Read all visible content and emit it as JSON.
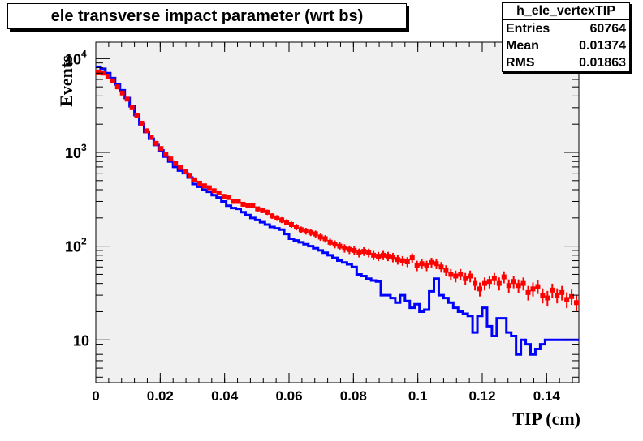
{
  "title": "ele transverse impact parameter (wrt bs)",
  "stats": {
    "name": "h_ele_vertexTIP",
    "rows": [
      {
        "label": "Entries",
        "value": "60764"
      },
      {
        "label": "Mean",
        "value": "0.01374"
      },
      {
        "label": "RMS",
        "value": "0.01863"
      }
    ]
  },
  "colors": {
    "frame_bg": "#f0f0f0",
    "reference": "#0000ff",
    "new": "#ff0000"
  },
  "chart_data": {
    "type": "line",
    "xlabel": "TIP (cm)",
    "ylabel": "Events",
    "xlim": [
      0,
      0.15
    ],
    "ylim": [
      3.5,
      15000
    ],
    "y_scale": "log",
    "grid": false,
    "x_ticks": [
      {
        "v": 0,
        "label": "0"
      },
      {
        "v": 0.02,
        "label": "0.02"
      },
      {
        "v": 0.04,
        "label": "0.04"
      },
      {
        "v": 0.06,
        "label": "0.06"
      },
      {
        "v": 0.08,
        "label": "0.08"
      },
      {
        "v": 0.1,
        "label": "0.1"
      },
      {
        "v": 0.12,
        "label": "0.12"
      },
      {
        "v": 0.14,
        "label": "0.14"
      }
    ],
    "y_ticks": [
      {
        "v": 10,
        "base": "10",
        "exp": ""
      },
      {
        "v": 100,
        "base": "10",
        "exp": "2"
      },
      {
        "v": 1000,
        "base": "10",
        "exp": "3"
      },
      {
        "v": 10000,
        "base": "10",
        "exp": "4"
      }
    ],
    "series": [
      {
        "style": "histogram-step",
        "color": "#0000ff",
        "x_start": 0,
        "bin_width": 0.0015,
        "values": [
          8200,
          7800,
          7000,
          6200,
          5300,
          4600,
          3800,
          3100,
          2500,
          2000,
          1650,
          1400,
          1200,
          1050,
          900,
          800,
          700,
          640,
          600,
          540,
          460,
          430,
          400,
          380,
          350,
          330,
          300,
          270,
          255,
          250,
          230,
          215,
          200,
          190,
          180,
          170,
          160,
          155,
          150,
          135,
          120,
          115,
          110,
          105,
          100,
          95,
          90,
          85,
          80,
          75,
          70,
          67,
          64,
          60,
          50,
          48,
          45,
          43,
          42,
          30,
          30,
          28,
          25,
          30,
          26,
          22,
          24,
          20,
          21,
          33,
          45,
          30,
          28,
          25,
          22,
          20,
          19,
          18,
          12,
          18,
          22,
          14,
          11,
          17,
          17,
          12,
          11,
          7,
          10,
          9,
          7,
          8,
          9,
          10,
          10,
          10,
          10,
          10,
          10,
          10
        ]
      },
      {
        "style": "markers-errorbars",
        "color": "#ff0000",
        "x_start": 0,
        "bin_width": 0.0015,
        "values": [
          7200,
          7000,
          6500,
          5800,
          5000,
          4300,
          3700,
          3000,
          2500,
          2050,
          1700,
          1450,
          1250,
          1100,
          950,
          850,
          760,
          690,
          620,
          560,
          510,
          470,
          440,
          420,
          390,
          370,
          340,
          330,
          300,
          300,
          280,
          270,
          270,
          250,
          240,
          230,
          210,
          200,
          190,
          180,
          170,
          160,
          150,
          145,
          140,
          135,
          125,
          120,
          110,
          105,
          100,
          95,
          92,
          90,
          85,
          88,
          85,
          80,
          78,
          80,
          78,
          76,
          72,
          70,
          68,
          75,
          62,
          65,
          62,
          67,
          65,
          60,
          55,
          50,
          48,
          50,
          45,
          48,
          40,
          35,
          40,
          42,
          45,
          40,
          47,
          38,
          42,
          38,
          40,
          32,
          35,
          37,
          30,
          28,
          34,
          30,
          32,
          27,
          29,
          25
        ]
      }
    ]
  }
}
